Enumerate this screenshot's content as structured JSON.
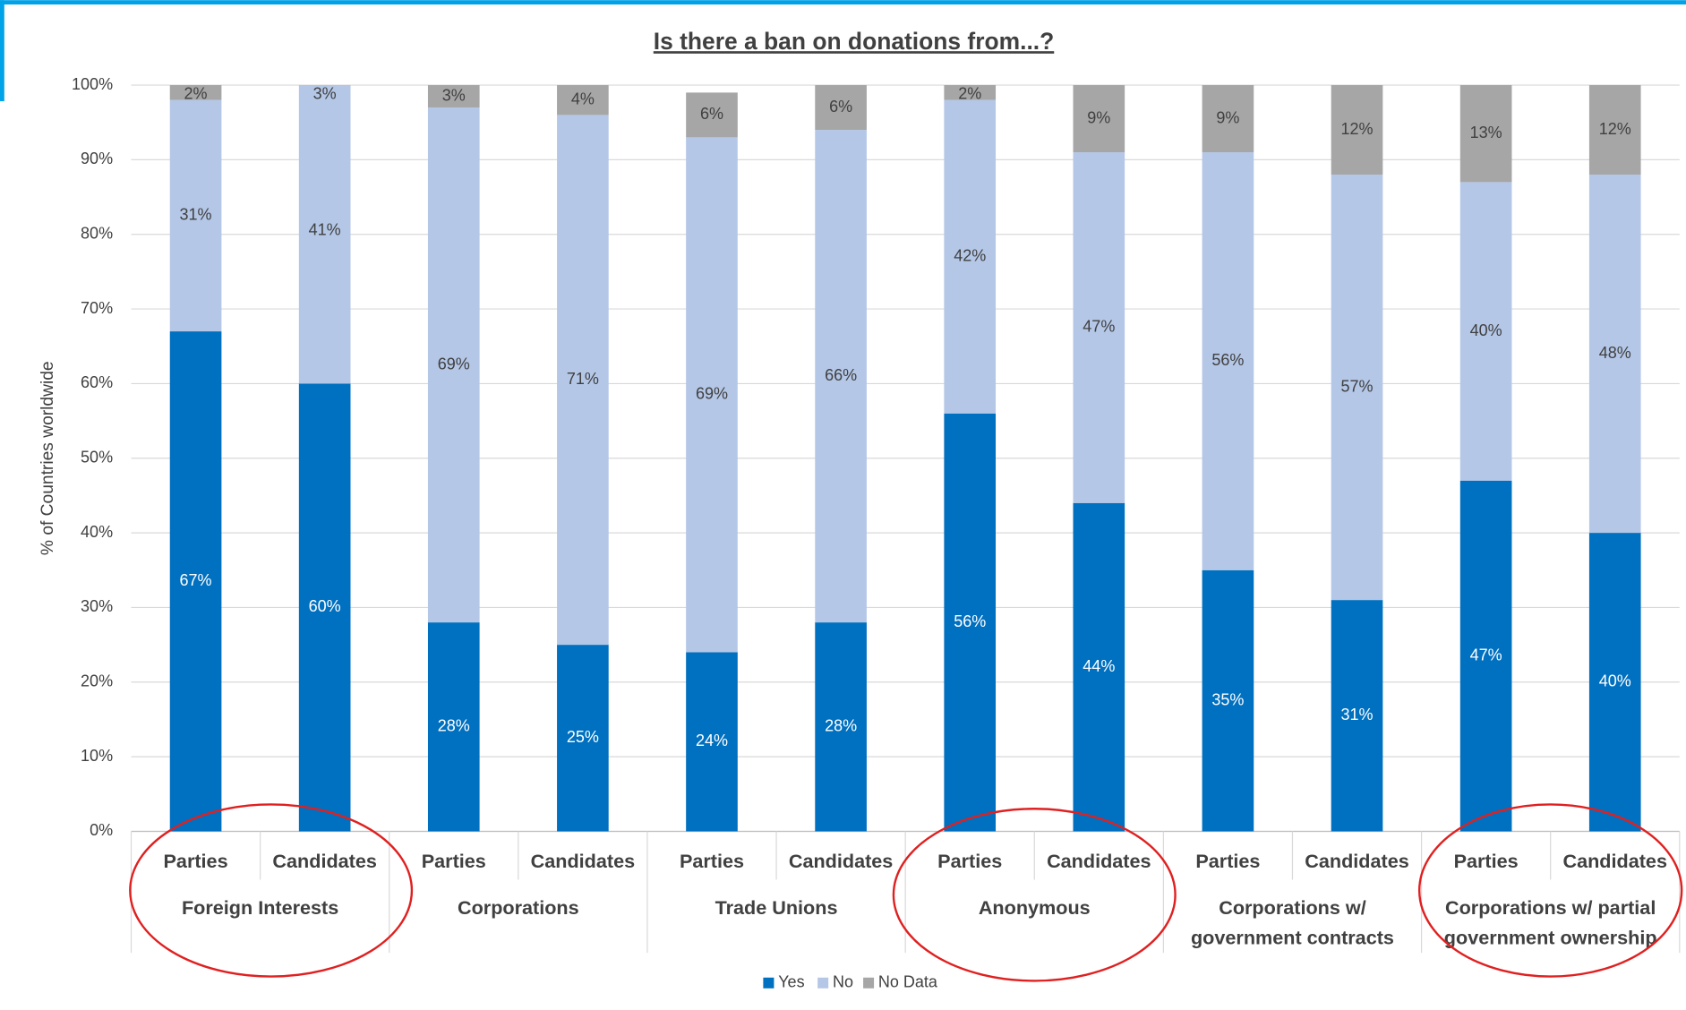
{
  "chart_data": {
    "type": "stacked_bar",
    "title": "Is there a ban on donations from...?",
    "y_label": "% of Countries worldwide",
    "categories": [
      "Parties",
      "Candidates",
      "Parties",
      "Candidates",
      "Parties",
      "Candidates",
      "Parties",
      "Candidates",
      "Parties",
      "Candidates",
      "Parties",
      "Candidates"
    ],
    "groups": [
      "Foreign Interests",
      "Corporations",
      "Trade Unions",
      "Anonymous",
      "Corporations w/\ngovernment contracts",
      "Corporations w/ partial\ngovernment ownership"
    ],
    "series": [
      {
        "name": "Yes",
        "color": "#0070c0",
        "values": [
          67,
          60,
          28,
          25,
          24,
          28,
          56,
          44,
          35,
          31,
          47,
          40
        ],
        "value_labels": [
          "67%",
          "60%",
          "28%",
          "25%",
          "24%",
          "28%",
          "56%",
          "44%",
          "35%",
          "31%",
          "47%",
          "40%"
        ]
      },
      {
        "name": "No",
        "color": "#b4c7e7",
        "values": [
          31,
          41,
          69,
          71,
          69,
          66,
          42,
          47,
          56,
          57,
          40,
          48
        ],
        "value_labels": [
          "31%",
          "41%",
          "69%",
          "71%",
          "69%",
          "66%",
          "42%",
          "47%",
          "56%",
          "57%",
          "40%",
          "48%"
        ]
      },
      {
        "name": "No Data",
        "color": "#a6a6a6",
        "values": [
          2,
          3,
          3,
          4,
          6,
          6,
          2,
          9,
          9,
          12,
          13,
          12
        ],
        "value_labels": [
          "2%",
          "3%",
          "3%",
          "4%",
          "6%",
          "6%",
          "2%",
          "9%",
          "9%",
          "12%",
          "13%",
          "12%"
        ]
      }
    ],
    "ylim": [
      0,
      100
    ],
    "yticks": [
      {
        "value": 0,
        "label": "0%"
      },
      {
        "value": 10,
        "label": "10%"
      },
      {
        "value": 20,
        "label": "20%"
      },
      {
        "value": 30,
        "label": "30%"
      },
      {
        "value": 40,
        "label": "40%"
      },
      {
        "value": 50,
        "label": "50%"
      },
      {
        "value": 60,
        "label": "60%"
      },
      {
        "value": 70,
        "label": "70%"
      },
      {
        "value": 80,
        "label": "80%"
      },
      {
        "value": 90,
        "label": "90%"
      },
      {
        "value": 100,
        "label": "100%"
      }
    ],
    "grid": true,
    "legend": "bottom"
  }
}
